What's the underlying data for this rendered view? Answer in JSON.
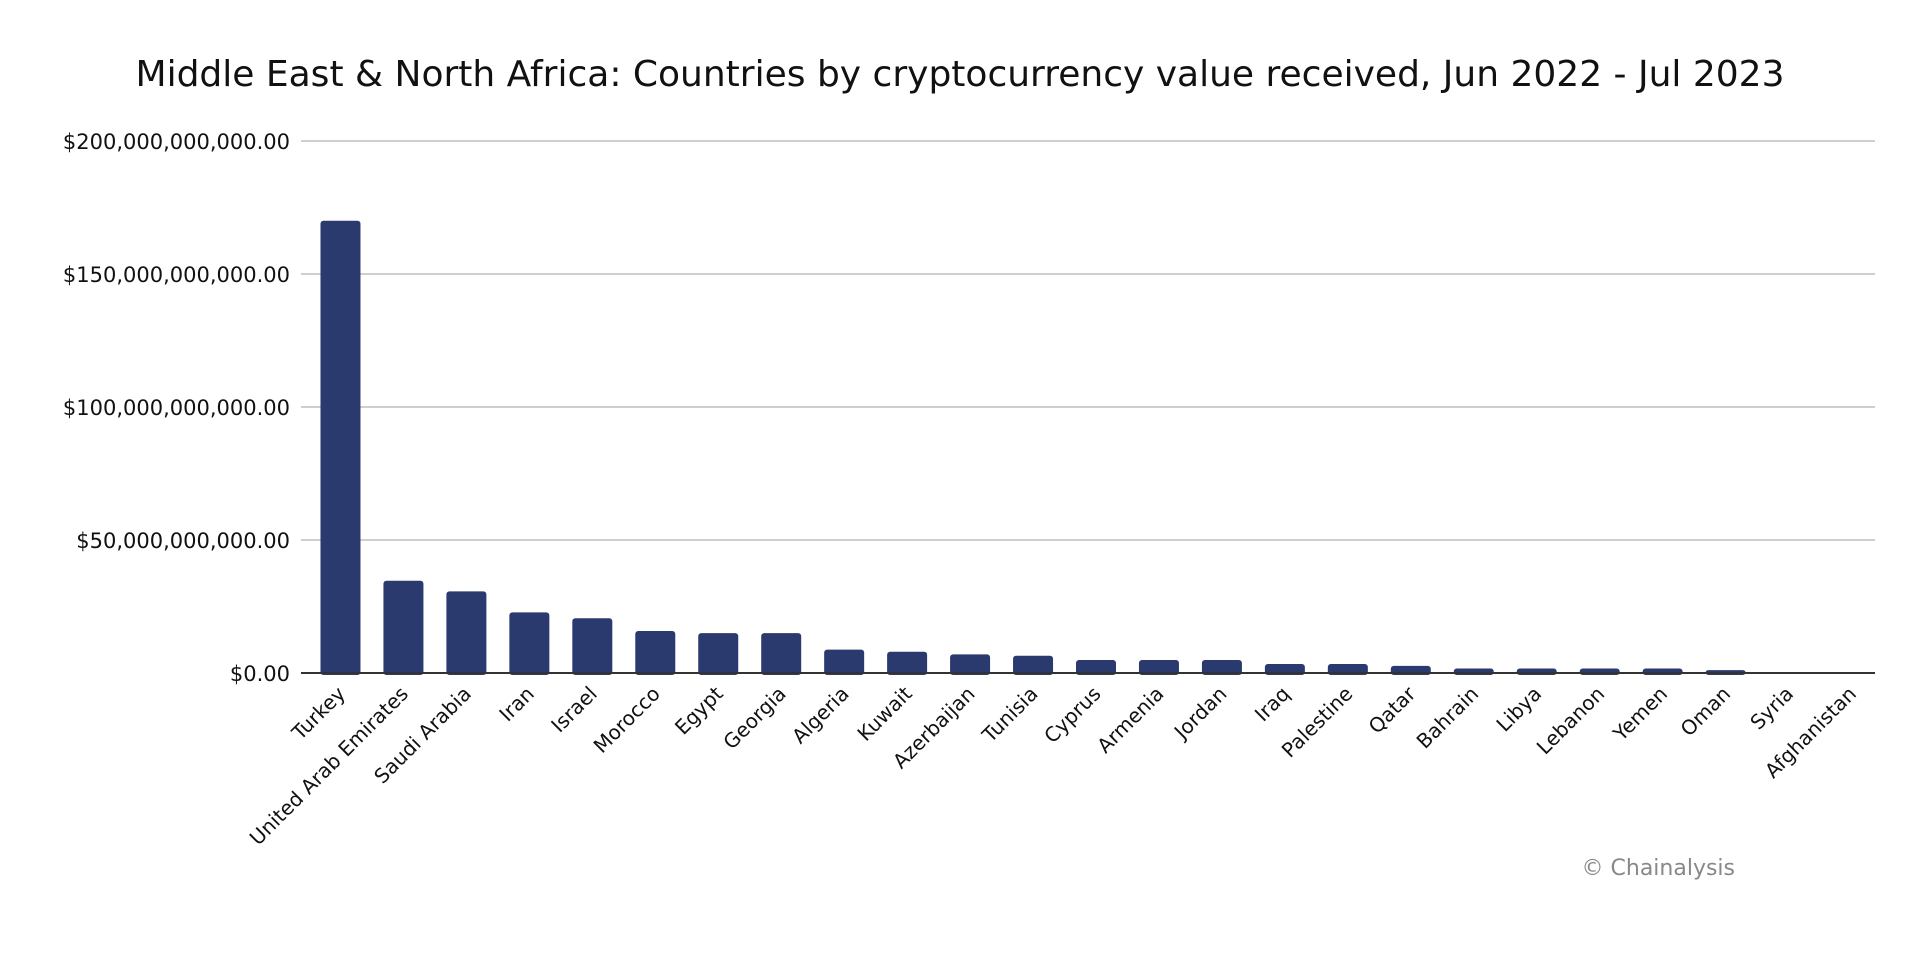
{
  "chart_data": {
    "type": "bar",
    "title": "Middle East & North Africa: Countries by cryptocurrency value received, Jun 2022 - Jul 2023",
    "xlabel": "",
    "ylabel": "",
    "ylim": [
      0,
      200000000000
    ],
    "yticks": [
      0,
      50000000000,
      100000000000,
      150000000000,
      200000000000
    ],
    "ytick_labels": [
      "$0.00",
      "$50,000,000,000.00",
      "$100,000,000,000.00",
      "$150,000,000,000.00",
      "$200,000,000,000.00"
    ],
    "grid": true,
    "bar_color": "#2b3a6e",
    "categories": [
      "Turkey",
      "United Arab Emirates",
      "Saudi Arabia",
      "Iran",
      "Israel",
      "Morocco",
      "Egypt",
      "Georgia",
      "Algeria",
      "Kuwait",
      "Azerbaijan",
      "Tunisia",
      "Cyprus",
      "Armenia",
      "Jordan",
      "Iraq",
      "Palestine",
      "Qatar",
      "Bahrain",
      "Libya",
      "Lebanon",
      "Yemen",
      "Oman",
      "Syria",
      "Afghanistan"
    ],
    "values": [
      170000000000,
      34700000000,
      30700000000,
      22800000000,
      20600000000,
      15800000000,
      15000000000,
      15000000000,
      8800000000,
      8000000000,
      7000000000,
      6500000000,
      4900000000,
      4900000000,
      4900000000,
      3400000000,
      3400000000,
      2700000000,
      1700000000,
      1700000000,
      1700000000,
      1700000000,
      1100000000,
      0,
      0
    ]
  },
  "credit": "© Chainalysis"
}
